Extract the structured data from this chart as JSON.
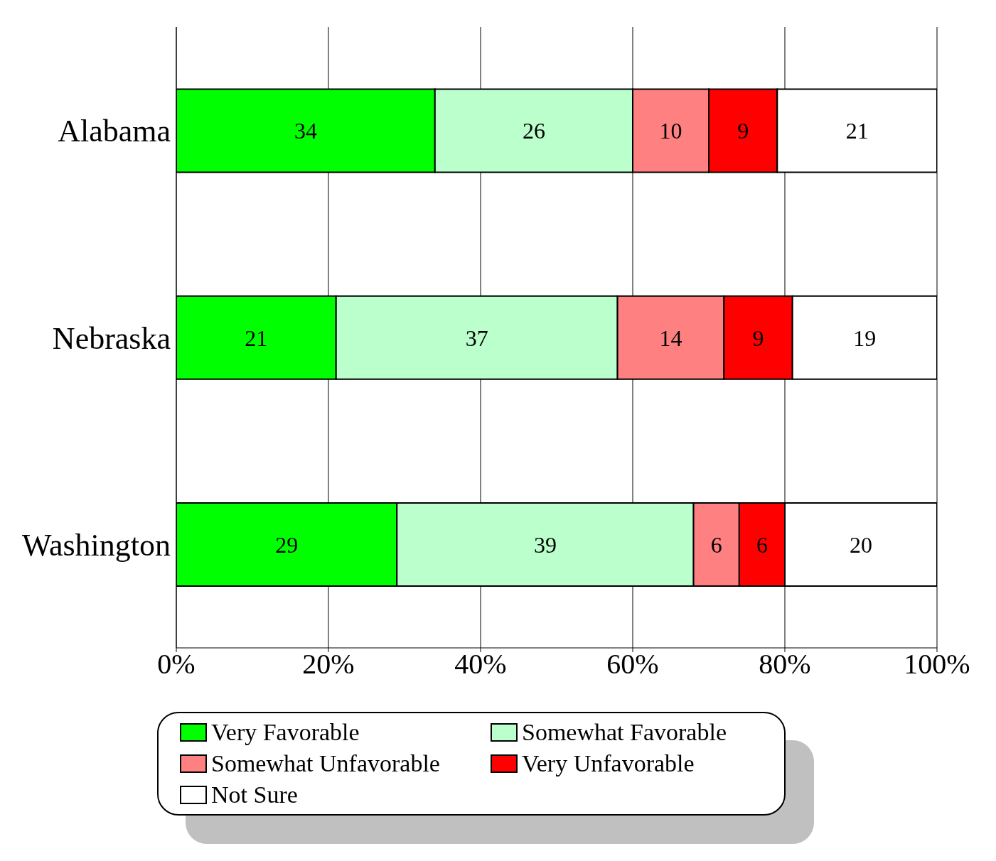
{
  "chart_data": {
    "type": "bar",
    "orientation": "horizontal",
    "stacked": true,
    "categories": [
      "Alabama",
      "Nebraska",
      "Washington"
    ],
    "series": [
      {
        "name": "Very Favorable",
        "color": "#00ff00",
        "values": [
          34,
          21,
          29
        ]
      },
      {
        "name": "Somewhat Favorable",
        "color": "#bbffcc",
        "values": [
          26,
          37,
          39
        ]
      },
      {
        "name": "Somewhat Unfavorable",
        "color": "#ff8080",
        "values": [
          10,
          14,
          6
        ]
      },
      {
        "name": "Very Unfavorable",
        "color": "#ff0000",
        "values": [
          9,
          9,
          6
        ]
      },
      {
        "name": "Not Sure",
        "color": "#ffffff",
        "values": [
          21,
          19,
          20
        ]
      }
    ],
    "xlim": [
      0,
      100
    ],
    "xticks": [
      {
        "value": 0,
        "label": "0%"
      },
      {
        "value": 20,
        "label": "20%"
      },
      {
        "value": 40,
        "label": "40%"
      },
      {
        "value": 60,
        "label": "60%"
      },
      {
        "value": 80,
        "label": "80%"
      },
      {
        "value": 100,
        "label": "100%"
      }
    ],
    "grid": "x",
    "legend": "bottom",
    "data_labels": true
  }
}
